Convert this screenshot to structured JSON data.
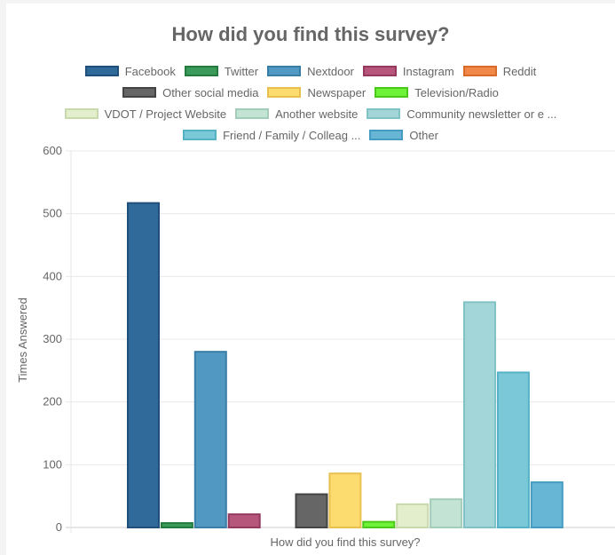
{
  "chart_data": {
    "type": "bar",
    "title": "How did you find this survey?",
    "xlabel": "How did you find this survey?",
    "ylabel": "Times Answered",
    "ylim": [
      0,
      600
    ],
    "yticks": [
      0,
      100,
      200,
      300,
      400,
      500,
      600
    ],
    "grid": true,
    "legend_position": "top",
    "series": [
      {
        "name": "Facebook",
        "value": 517,
        "fill": "#2f6a9a",
        "border": "#1f4f7a"
      },
      {
        "name": "Twitter",
        "value": 7,
        "fill": "#3a9a5a",
        "border": "#257a40"
      },
      {
        "name": "Nextdoor",
        "value": 280,
        "fill": "#5199c2",
        "border": "#3a7ea8"
      },
      {
        "name": "Instagram",
        "value": 21,
        "fill": "#b5567a",
        "border": "#943a5f"
      },
      {
        "name": "Reddit",
        "value": 0,
        "fill": "#f0884a",
        "border": "#d86a2a"
      },
      {
        "name": "Other social media",
        "value": 53,
        "fill": "#666666",
        "border": "#444444"
      },
      {
        "name": "Newspaper",
        "value": 86,
        "fill": "#fcdc6e",
        "border": "#e8c050"
      },
      {
        "name": "Television/Radio",
        "value": 9,
        "fill": "#6ef238",
        "border": "#4cc818"
      },
      {
        "name": "VDOT / Project Website",
        "value": 37,
        "fill": "#e3eecd",
        "border": "#c8d9ad"
      },
      {
        "name": "Another website",
        "value": 45,
        "fill": "#c3e3d5",
        "border": "#a3cdb9"
      },
      {
        "name": "Community newsletter or e ...",
        "value": 359,
        "fill": "#a3d6d8",
        "border": "#80c2c5"
      },
      {
        "name": "Friend / Family / Colleag ...",
        "value": 247,
        "fill": "#7bc8d8",
        "border": "#55b2c6"
      },
      {
        "name": "Other",
        "value": 72,
        "fill": "#67b6d6",
        "border": "#459cc0"
      }
    ]
  }
}
